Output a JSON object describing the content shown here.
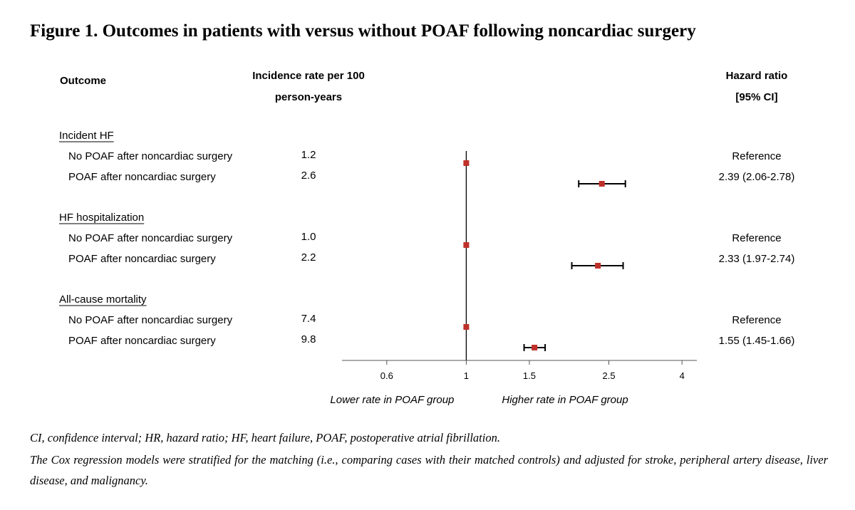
{
  "title": "Figure 1. Outcomes in patients with versus without POAF following noncardiac surgery",
  "headers": {
    "outcome": "Outcome",
    "incidence_line1": "Incidence rate per 100",
    "incidence_line2": "person-years",
    "hr_line1": "Hazard ratio",
    "hr_line2": "[95% CI]"
  },
  "chart_data": {
    "type": "forest",
    "x_scale": "log",
    "xlim": [
      0.45,
      4.4
    ],
    "x_ticks": [
      "0.6",
      "1",
      "1.5",
      "2.5",
      "4"
    ],
    "reference_value": 1,
    "direction_labels": {
      "left": "Lower rate in POAF group",
      "right": "Higher rate in POAF group"
    },
    "marker_color": "#c0302a",
    "groups": [
      {
        "name": "Incident HF",
        "rows": [
          {
            "label": "No POAF after noncardiac surgery",
            "incidence": "1.2",
            "hr": 1,
            "lo": null,
            "hi": null,
            "hr_text": "Reference"
          },
          {
            "label": "POAF after noncardiac surgery",
            "incidence": "2.6",
            "hr": 2.39,
            "lo": 2.06,
            "hi": 2.78,
            "hr_text": "2.39 (2.06-2.78)"
          }
        ]
      },
      {
        "name": "HF hospitalization",
        "rows": [
          {
            "label": "No POAF after noncardiac surgery",
            "incidence": "1.0",
            "hr": 1,
            "lo": null,
            "hi": null,
            "hr_text": "Reference"
          },
          {
            "label": "POAF after noncardiac surgery",
            "incidence": "2.2",
            "hr": 2.33,
            "lo": 1.97,
            "hi": 2.74,
            "hr_text": "2.33 (1.97-2.74)"
          }
        ]
      },
      {
        "name": "All-cause mortality",
        "rows": [
          {
            "label": "No POAF after noncardiac surgery",
            "incidence": "7.4",
            "hr": 1,
            "lo": null,
            "hi": null,
            "hr_text": "Reference"
          },
          {
            "label": "POAF after noncardiac surgery",
            "incidence": "9.8",
            "hr": 1.55,
            "lo": 1.45,
            "hi": 1.66,
            "hr_text": "1.55 (1.45-1.66)"
          }
        ]
      }
    ]
  },
  "footnotes": [
    "CI, confidence interval; HR, hazard ratio; HF, heart failure, POAF, postoperative atrial fibrillation.",
    "The Cox regression models were stratified for the matching (i.e., comparing cases with their matched controls) and adjusted for stroke, peripheral artery disease, liver disease, and malignancy."
  ]
}
